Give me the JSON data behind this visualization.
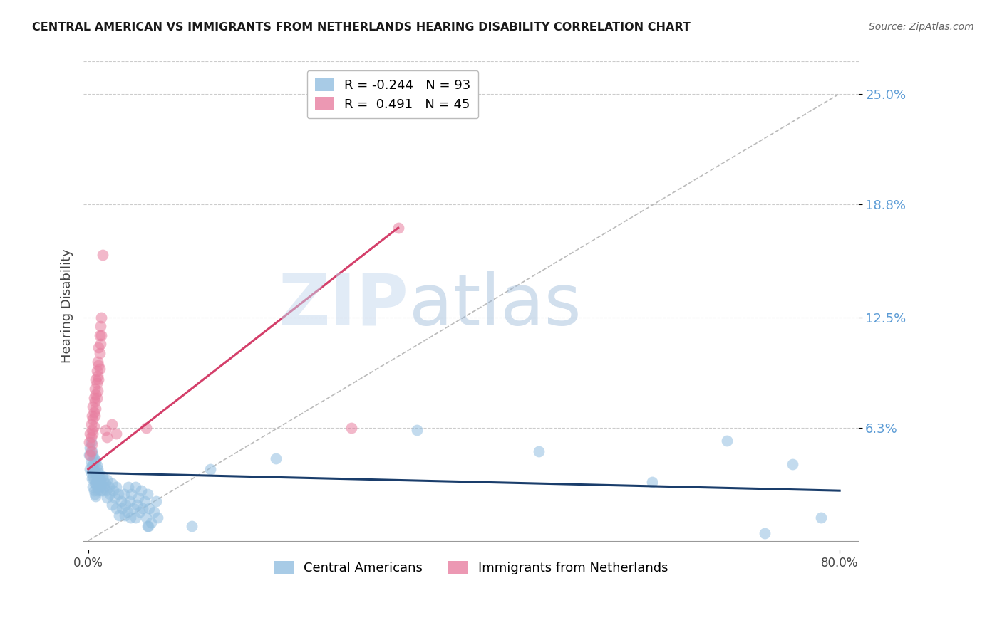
{
  "title": "CENTRAL AMERICAN VS IMMIGRANTS FROM NETHERLANDS HEARING DISABILITY CORRELATION CHART",
  "source": "Source: ZipAtlas.com",
  "ylabel": "Hearing Disability",
  "ytick_labels": [
    "6.3%",
    "12.5%",
    "18.8%",
    "25.0%"
  ],
  "ytick_values": [
    0.063,
    0.125,
    0.188,
    0.25
  ],
  "xmin": -0.005,
  "xmax": 0.82,
  "ymin": -0.005,
  "ymax": 0.268,
  "watermark_zip": "ZIP",
  "watermark_atlas": "atlas",
  "blue_color": "#93bfe0",
  "pink_color": "#e87fa0",
  "blue_line_color": "#1a3d6b",
  "pink_line_color": "#d43f6a",
  "diagonal_color": "#bbbbbb",
  "background_color": "#ffffff",
  "grid_color": "#cccccc",
  "legend_blue_label": "R = -0.244   N = 93",
  "legend_pink_label": "R =  0.491   N = 45",
  "bottom_legend_blue": "Central Americans",
  "bottom_legend_pink": "Immigrants from Netherlands",
  "blue_scatter": [
    [
      0.001,
      0.048
    ],
    [
      0.002,
      0.052
    ],
    [
      0.002,
      0.04
    ],
    [
      0.003,
      0.055
    ],
    [
      0.003,
      0.038
    ],
    [
      0.003,
      0.044
    ],
    [
      0.004,
      0.05
    ],
    [
      0.004,
      0.042
    ],
    [
      0.004,
      0.035
    ],
    [
      0.005,
      0.048
    ],
    [
      0.005,
      0.042
    ],
    [
      0.005,
      0.036
    ],
    [
      0.005,
      0.03
    ],
    [
      0.006,
      0.046
    ],
    [
      0.006,
      0.04
    ],
    [
      0.006,
      0.034
    ],
    [
      0.006,
      0.028
    ],
    [
      0.007,
      0.045
    ],
    [
      0.007,
      0.038
    ],
    [
      0.007,
      0.032
    ],
    [
      0.007,
      0.026
    ],
    [
      0.008,
      0.044
    ],
    [
      0.008,
      0.038
    ],
    [
      0.008,
      0.032
    ],
    [
      0.008,
      0.025
    ],
    [
      0.009,
      0.042
    ],
    [
      0.009,
      0.036
    ],
    [
      0.009,
      0.03
    ],
    [
      0.01,
      0.04
    ],
    [
      0.01,
      0.034
    ],
    [
      0.01,
      0.028
    ],
    [
      0.011,
      0.038
    ],
    [
      0.011,
      0.032
    ],
    [
      0.012,
      0.036
    ],
    [
      0.012,
      0.03
    ],
    [
      0.013,
      0.034
    ],
    [
      0.013,
      0.028
    ],
    [
      0.014,
      0.032
    ],
    [
      0.015,
      0.036
    ],
    [
      0.015,
      0.028
    ],
    [
      0.016,
      0.034
    ],
    [
      0.017,
      0.03
    ],
    [
      0.018,
      0.032
    ],
    [
      0.019,
      0.028
    ],
    [
      0.02,
      0.034
    ],
    [
      0.02,
      0.024
    ],
    [
      0.022,
      0.03
    ],
    [
      0.023,
      0.026
    ],
    [
      0.025,
      0.032
    ],
    [
      0.025,
      0.02
    ],
    [
      0.027,
      0.028
    ],
    [
      0.028,
      0.024
    ],
    [
      0.03,
      0.03
    ],
    [
      0.03,
      0.018
    ],
    [
      0.032,
      0.026
    ],
    [
      0.033,
      0.014
    ],
    [
      0.035,
      0.022
    ],
    [
      0.036,
      0.018
    ],
    [
      0.038,
      0.026
    ],
    [
      0.039,
      0.014
    ],
    [
      0.04,
      0.02
    ],
    [
      0.042,
      0.016
    ],
    [
      0.043,
      0.03
    ],
    [
      0.044,
      0.022
    ],
    [
      0.045,
      0.013
    ],
    [
      0.046,
      0.026
    ],
    [
      0.048,
      0.018
    ],
    [
      0.05,
      0.03
    ],
    [
      0.05,
      0.013
    ],
    [
      0.052,
      0.02
    ],
    [
      0.053,
      0.024
    ],
    [
      0.055,
      0.016
    ],
    [
      0.056,
      0.028
    ],
    [
      0.058,
      0.018
    ],
    [
      0.06,
      0.022
    ],
    [
      0.062,
      0.013
    ],
    [
      0.063,
      0.026
    ],
    [
      0.063,
      0.008
    ],
    [
      0.064,
      0.008
    ],
    [
      0.065,
      0.018
    ],
    [
      0.067,
      0.01
    ],
    [
      0.07,
      0.016
    ],
    [
      0.072,
      0.022
    ],
    [
      0.074,
      0.013
    ],
    [
      0.35,
      0.062
    ],
    [
      0.48,
      0.05
    ],
    [
      0.6,
      0.033
    ],
    [
      0.68,
      0.056
    ],
    [
      0.72,
      0.004
    ],
    [
      0.75,
      0.043
    ],
    [
      0.78,
      0.013
    ],
    [
      0.13,
      0.04
    ],
    [
      0.2,
      0.046
    ],
    [
      0.11,
      0.008
    ]
  ],
  "pink_scatter": [
    [
      0.001,
      0.055
    ],
    [
      0.002,
      0.06
    ],
    [
      0.002,
      0.048
    ],
    [
      0.003,
      0.065
    ],
    [
      0.003,
      0.058
    ],
    [
      0.003,
      0.05
    ],
    [
      0.004,
      0.07
    ],
    [
      0.004,
      0.062
    ],
    [
      0.004,
      0.054
    ],
    [
      0.005,
      0.075
    ],
    [
      0.005,
      0.068
    ],
    [
      0.005,
      0.06
    ],
    [
      0.006,
      0.08
    ],
    [
      0.006,
      0.072
    ],
    [
      0.006,
      0.064
    ],
    [
      0.007,
      0.085
    ],
    [
      0.007,
      0.078
    ],
    [
      0.007,
      0.07
    ],
    [
      0.008,
      0.09
    ],
    [
      0.008,
      0.082
    ],
    [
      0.008,
      0.074
    ],
    [
      0.009,
      0.095
    ],
    [
      0.009,
      0.088
    ],
    [
      0.009,
      0.08
    ],
    [
      0.01,
      0.1
    ],
    [
      0.01,
      0.092
    ],
    [
      0.01,
      0.084
    ],
    [
      0.011,
      0.108
    ],
    [
      0.011,
      0.098
    ],
    [
      0.011,
      0.09
    ],
    [
      0.012,
      0.115
    ],
    [
      0.012,
      0.105
    ],
    [
      0.012,
      0.096
    ],
    [
      0.013,
      0.12
    ],
    [
      0.013,
      0.11
    ],
    [
      0.014,
      0.125
    ],
    [
      0.014,
      0.115
    ],
    [
      0.015,
      0.16
    ],
    [
      0.018,
      0.062
    ],
    [
      0.02,
      0.058
    ],
    [
      0.025,
      0.065
    ],
    [
      0.03,
      0.06
    ],
    [
      0.062,
      0.063
    ],
    [
      0.28,
      0.063
    ],
    [
      0.33,
      0.175
    ]
  ],
  "blue_line_x": [
    0.0,
    0.8
  ],
  "blue_line_y": [
    0.038,
    0.028
  ],
  "pink_line_x": [
    0.0,
    0.33
  ],
  "pink_line_y": [
    0.04,
    0.175
  ]
}
